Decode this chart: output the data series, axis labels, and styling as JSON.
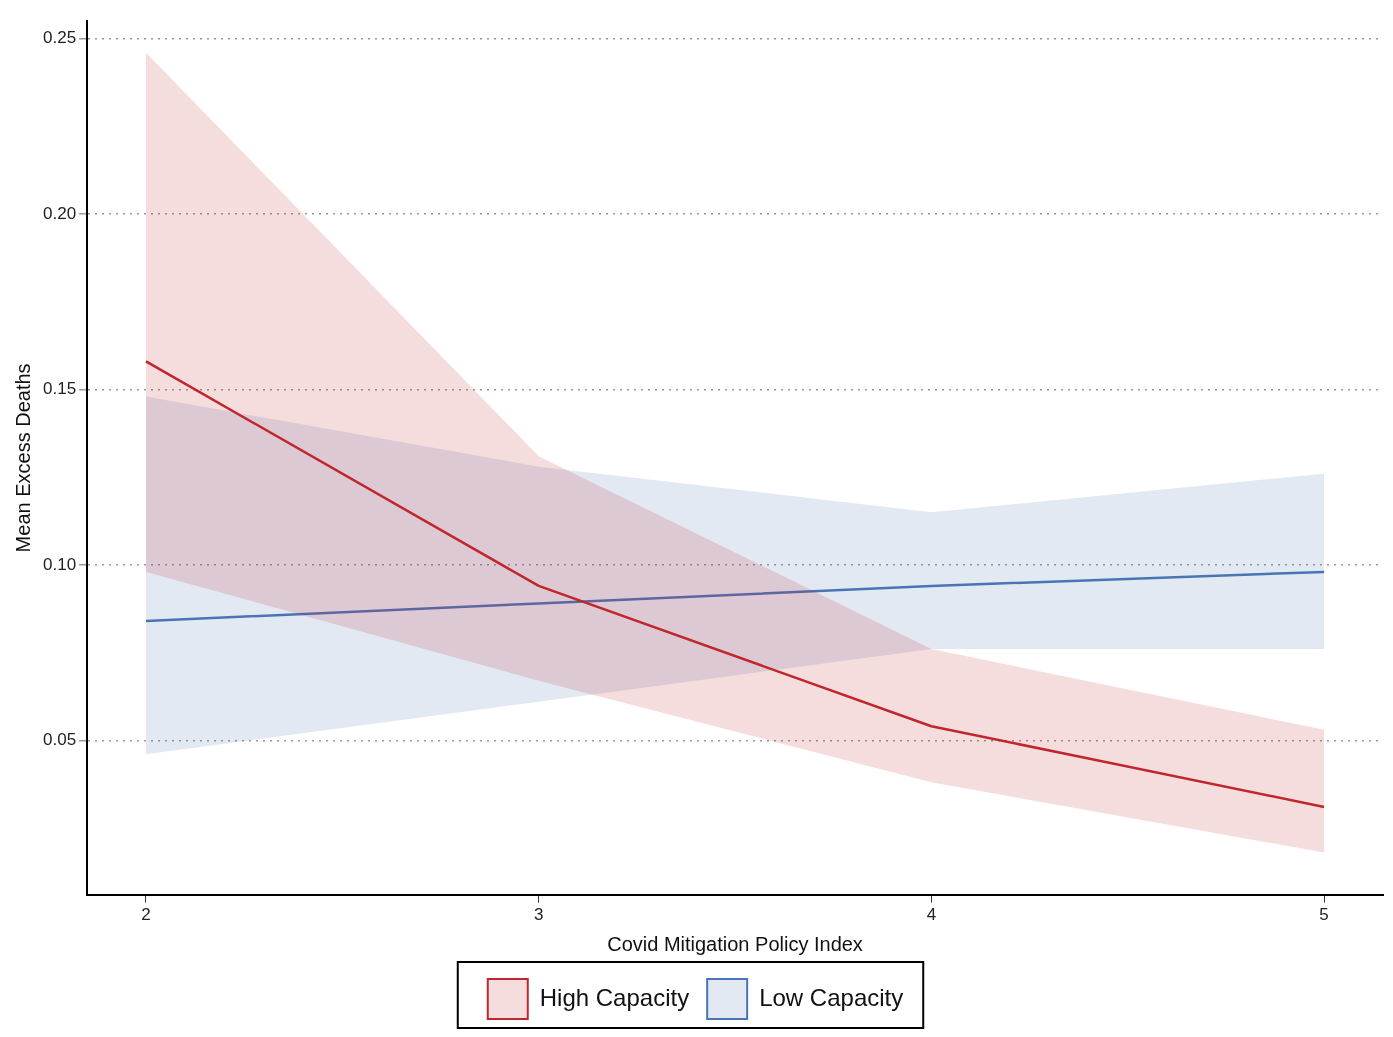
{
  "chart_data": {
    "type": "line",
    "xlabel": "Covid Mitigation Policy Index",
    "ylabel": "Mean Excess Deaths",
    "x": [
      2,
      3,
      4,
      5
    ],
    "series": [
      {
        "name": "High Capacity",
        "color": "#c0272d",
        "values": [
          0.158,
          0.094,
          0.054,
          0.031
        ],
        "lower": [
          0.098,
          0.067,
          0.038,
          0.018
        ],
        "upper": [
          0.246,
          0.131,
          0.076,
          0.053
        ]
      },
      {
        "name": "Low Capacity",
        "color": "#4a74b4",
        "values": [
          0.084,
          0.089,
          0.094,
          0.098
        ],
        "lower": [
          0.046,
          0.061,
          0.076,
          0.076
        ],
        "upper": [
          0.148,
          0.128,
          0.115,
          0.126
        ]
      }
    ],
    "xlim": [
      1.85,
      5.15
    ],
    "xticks": [
      2,
      3,
      4,
      5
    ],
    "ylim": [
      0.006,
      0.255
    ],
    "yticks": [
      {
        "value": 0.05,
        "label": "0.05"
      },
      {
        "value": 0.1,
        "label": "0.10"
      },
      {
        "value": 0.15,
        "label": "0.15"
      },
      {
        "value": 0.2,
        "label": "0.20"
      },
      {
        "value": 0.25,
        "label": "0.25"
      }
    ],
    "grid": "y",
    "legend": "bottom",
    "marker": "none"
  }
}
